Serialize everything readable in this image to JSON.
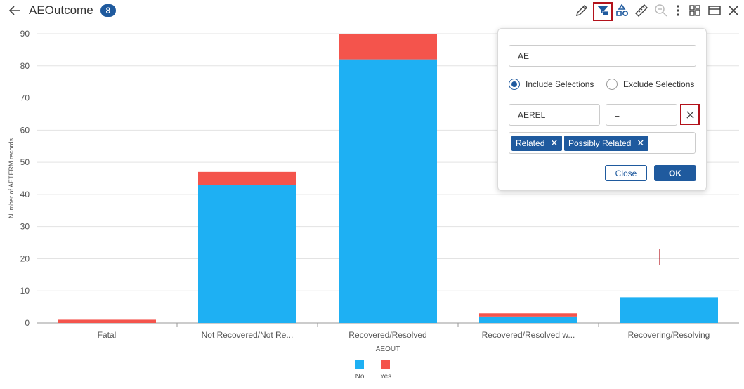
{
  "header": {
    "title": "AEOutcome",
    "count_badge": "8"
  },
  "toolbar": {
    "icons": [
      "back-arrow-icon",
      "pencil-icon",
      "filter-icon",
      "shapes-icon",
      "ruler-icon",
      "zoom-out-icon",
      "more-vertical-icon",
      "grid-layout-icon",
      "panel-icon",
      "close-icon"
    ],
    "highlight_color": "#b3121b"
  },
  "filter_popup": {
    "dataset_value": "AE",
    "include_label": "Include Selections",
    "exclude_label": "Exclude Selections",
    "include_selected": true,
    "variable_value": "AEREL",
    "operator_value": "=",
    "selected_values": [
      "Related",
      "Possibly Related"
    ],
    "close_label": "Close",
    "ok_label": "OK",
    "accent_color": "#1f5a9e"
  },
  "chart_data": {
    "type": "bar",
    "stacked": true,
    "categories": [
      "Fatal",
      "Not Recovered/Not Re...",
      "Recovered/Resolved",
      "Recovered/Resolved w...",
      "Recovering/Resolving"
    ],
    "series": [
      {
        "name": "No",
        "color": "#1eb0f3",
        "values": [
          0,
          43,
          82,
          2,
          8
        ]
      },
      {
        "name": "Yes",
        "color": "#f4544c",
        "values": [
          1,
          4,
          8,
          1,
          0
        ]
      }
    ],
    "xlabel": "AEOUT",
    "ylabel": "Number of AETERM records",
    "ylim": [
      0,
      90
    ],
    "yticks": [
      0,
      10,
      20,
      30,
      40,
      50,
      60,
      70,
      80,
      90
    ],
    "grid": true,
    "legend_position": "bottom-center"
  }
}
